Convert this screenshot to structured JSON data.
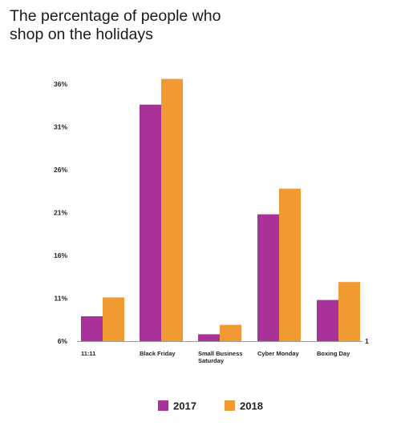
{
  "chart_data": {
    "type": "bar",
    "title": "The percentage of people who shop on the holidays",
    "xlabel": "",
    "ylabel": "",
    "categories": [
      "11:11",
      "Black Friday",
      "Small Business Saturday",
      "Cyber Monday",
      "Boxing Day"
    ],
    "series": [
      {
        "name": "2017",
        "color": "#a8319a",
        "values": [
          8.9,
          33.6,
          6.8,
          20.8,
          10.8
        ]
      },
      {
        "name": "2018",
        "color": "#f29a32",
        "values": [
          11.1,
          36.6,
          7.9,
          23.8,
          12.9
        ]
      }
    ],
    "ylim": [
      6,
      36
    ],
    "yticks": [
      "6%",
      "11%",
      "16%",
      "21%",
      "26%",
      "31%",
      "36%"
    ],
    "ytick_values": [
      6,
      11,
      16,
      21,
      26,
      31,
      36
    ],
    "stray_axis_text": "1",
    "grid": false,
    "legend_position": "bottom-center"
  }
}
